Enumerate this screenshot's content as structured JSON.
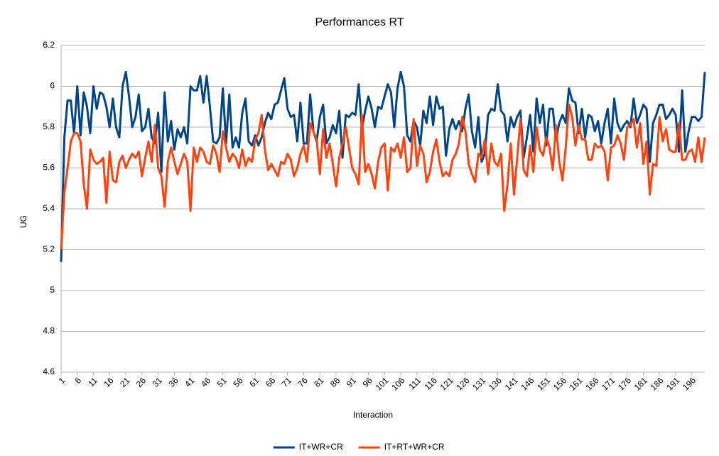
{
  "chart_data": {
    "type": "line",
    "title": "Performances RT",
    "x_label": "Interaction",
    "y_label": "UG",
    "x": [
      1,
      2,
      3,
      4,
      5,
      6,
      7,
      8,
      9,
      10,
      11,
      12,
      13,
      14,
      15,
      16,
      17,
      18,
      19,
      20,
      21,
      22,
      23,
      24,
      25,
      26,
      27,
      28,
      29,
      30,
      31,
      32,
      33,
      34,
      35,
      36,
      37,
      38,
      39,
      40,
      41,
      42,
      43,
      44,
      45,
      46,
      47,
      48,
      49,
      50,
      51,
      52,
      53,
      54,
      55,
      56,
      57,
      58,
      59,
      60,
      61,
      62,
      63,
      64,
      65,
      66,
      67,
      68,
      69,
      70,
      71,
      72,
      73,
      74,
      75,
      76,
      77,
      78,
      79,
      80,
      81,
      82,
      83,
      84,
      85,
      86,
      87,
      88,
      89,
      90,
      91,
      92,
      93,
      94,
      95,
      96,
      97,
      98,
      99,
      100,
      101,
      102,
      103,
      104,
      105,
      106,
      107,
      108,
      109,
      110,
      111,
      112,
      113,
      114,
      115,
      116,
      117,
      118,
      119,
      120,
      121,
      122,
      123,
      124,
      125,
      126,
      127,
      128,
      129,
      130,
      131,
      132,
      133,
      134,
      135,
      136,
      137,
      138,
      139,
      140,
      141,
      142,
      143,
      144,
      145,
      146,
      147,
      148,
      149,
      150,
      151,
      152,
      153,
      154,
      155,
      156,
      157,
      158,
      159,
      160,
      161,
      162,
      163,
      164,
      165,
      166,
      167,
      168,
      169,
      170,
      171,
      172,
      173,
      174,
      175,
      176,
      177,
      178,
      179,
      180,
      181,
      182,
      183,
      184,
      185,
      186,
      187,
      188,
      189,
      190,
      191,
      192,
      193,
      194,
      195,
      196,
      197,
      198,
      199,
      200
    ],
    "series": [
      {
        "name": "IT+WR+CR",
        "color": "#004586",
        "values": [
          5.14,
          5.75,
          5.93,
          5.93,
          5.77,
          6.0,
          5.76,
          5.97,
          5.9,
          5.77,
          6.0,
          5.89,
          5.97,
          5.96,
          5.9,
          5.8,
          5.94,
          5.8,
          5.75,
          6.0,
          6.07,
          5.95,
          5.8,
          5.85,
          5.96,
          5.78,
          5.8,
          5.89,
          5.75,
          5.72,
          5.87,
          5.58,
          5.97,
          5.73,
          5.83,
          5.69,
          5.79,
          5.75,
          5.8,
          5.72,
          6.0,
          5.98,
          5.98,
          6.05,
          5.92,
          6.05,
          5.9,
          5.73,
          5.72,
          5.75,
          5.99,
          5.72,
          5.96,
          5.7,
          5.75,
          5.7,
          5.87,
          5.94,
          5.73,
          5.71,
          5.76,
          5.71,
          5.75,
          5.82,
          5.87,
          5.84,
          5.91,
          5.92,
          5.98,
          6.04,
          5.89,
          5.85,
          5.86,
          5.73,
          5.92,
          5.72,
          5.72,
          5.96,
          5.78,
          5.73,
          5.85,
          5.91,
          5.72,
          5.75,
          5.81,
          5.77,
          5.88,
          5.65,
          5.86,
          5.85,
          5.87,
          5.86,
          6.01,
          5.79,
          5.88,
          5.95,
          5.89,
          5.8,
          5.9,
          5.89,
          5.95,
          6.01,
          5.97,
          5.8,
          5.99,
          6.07,
          6.0,
          5.76,
          5.73,
          5.83,
          5.8,
          5.71,
          5.88,
          5.82,
          5.95,
          5.81,
          5.95,
          5.89,
          5.9,
          5.66,
          5.79,
          5.84,
          5.79,
          5.83,
          5.78,
          5.89,
          5.96,
          5.78,
          5.7,
          5.85,
          5.63,
          5.67,
          5.86,
          5.89,
          5.88,
          6.01,
          5.88,
          5.86,
          5.73,
          5.85,
          5.8,
          5.85,
          5.88,
          5.65,
          5.75,
          5.86,
          5.68,
          5.94,
          5.82,
          5.91,
          5.71,
          5.89,
          5.89,
          5.74,
          5.82,
          5.86,
          5.82,
          5.99,
          5.93,
          5.92,
          5.77,
          5.89,
          5.75,
          5.86,
          5.85,
          5.78,
          5.83,
          5.72,
          5.82,
          5.89,
          5.72,
          5.94,
          5.82,
          5.78,
          5.81,
          5.83,
          5.8,
          5.94,
          5.82,
          5.86,
          5.91,
          5.89,
          5.63,
          5.82,
          5.86,
          5.91,
          5.91,
          5.84,
          5.86,
          5.89,
          5.86,
          5.68,
          5.98,
          5.68,
          5.78,
          5.85,
          5.85,
          5.83,
          5.85,
          6.07
        ]
      },
      {
        "name": "IT+RT+WR+CR",
        "color": "#ff420e",
        "values": [
          5.2,
          5.48,
          5.6,
          5.73,
          5.77,
          5.77,
          5.73,
          5.52,
          5.4,
          5.69,
          5.64,
          5.62,
          5.63,
          5.65,
          5.43,
          5.68,
          5.54,
          5.53,
          5.63,
          5.66,
          5.6,
          5.64,
          5.67,
          5.65,
          5.68,
          5.56,
          5.65,
          5.73,
          5.63,
          5.81,
          5.6,
          5.56,
          5.41,
          5.63,
          5.7,
          5.63,
          5.57,
          5.62,
          5.67,
          5.63,
          5.39,
          5.7,
          5.63,
          5.7,
          5.68,
          5.63,
          5.62,
          5.71,
          5.67,
          5.58,
          5.78,
          5.7,
          5.63,
          5.67,
          5.65,
          5.6,
          5.69,
          5.61,
          5.65,
          5.63,
          5.74,
          5.77,
          5.86,
          5.69,
          5.59,
          5.62,
          5.59,
          5.56,
          5.63,
          5.62,
          5.67,
          5.64,
          5.56,
          5.6,
          5.67,
          5.71,
          5.63,
          5.82,
          5.78,
          5.74,
          5.57,
          5.79,
          5.65,
          5.72,
          5.62,
          5.51,
          5.65,
          5.72,
          5.8,
          5.7,
          5.6,
          5.57,
          5.52,
          5.86,
          5.58,
          5.62,
          5.57,
          5.5,
          5.63,
          5.7,
          5.72,
          5.49,
          5.7,
          5.68,
          5.72,
          5.65,
          5.75,
          5.58,
          5.6,
          5.84,
          5.61,
          5.71,
          5.67,
          5.53,
          5.58,
          5.68,
          5.74,
          5.63,
          5.56,
          5.58,
          5.56,
          5.64,
          5.67,
          5.72,
          5.85,
          5.78,
          5.62,
          5.57,
          5.53,
          5.67,
          5.65,
          5.74,
          5.57,
          5.72,
          5.63,
          5.61,
          5.67,
          5.39,
          5.52,
          5.72,
          5.47,
          5.65,
          5.84,
          5.59,
          5.56,
          5.71,
          5.58,
          5.8,
          5.69,
          5.66,
          5.75,
          5.7,
          5.59,
          5.81,
          5.63,
          5.54,
          5.7,
          5.91,
          5.85,
          5.71,
          5.81,
          5.74,
          5.74,
          5.64,
          5.64,
          5.72,
          5.7,
          5.71,
          5.68,
          5.54,
          5.7,
          5.71,
          5.76,
          5.72,
          5.64,
          5.8,
          5.81,
          5.84,
          5.7,
          5.82,
          5.62,
          5.73,
          5.47,
          5.62,
          5.61,
          5.85,
          5.73,
          5.79,
          5.69,
          5.68,
          5.68,
          5.82,
          5.64,
          5.64,
          5.68,
          5.69,
          5.63,
          5.75,
          5.63,
          5.75
        ]
      }
    ],
    "xlim": [
      1,
      200
    ],
    "xticks": [
      1,
      6,
      11,
      16,
      21,
      26,
      31,
      36,
      41,
      46,
      51,
      56,
      61,
      66,
      71,
      76,
      81,
      86,
      91,
      96,
      101,
      106,
      111,
      116,
      121,
      126,
      131,
      136,
      141,
      146,
      151,
      156,
      161,
      166,
      171,
      176,
      181,
      186,
      191,
      196
    ],
    "ylim": [
      4.6,
      6.2
    ],
    "yticks": [
      4.6,
      4.8,
      5,
      5.2,
      5.4,
      5.6,
      5.8,
      6,
      6.2
    ],
    "grid": true,
    "legend": "bottom"
  }
}
